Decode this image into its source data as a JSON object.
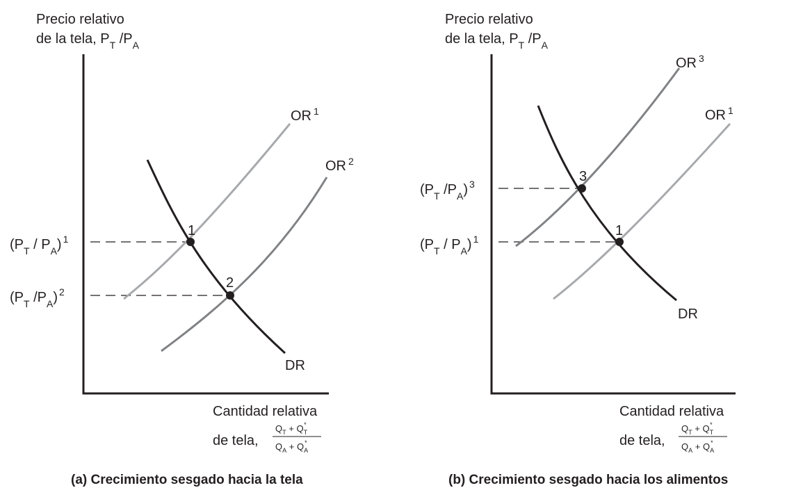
{
  "panel_a": {
    "y_axis_line1": "Precio relativo",
    "y_axis_line2": "de la tela, P",
    "y_axis_sub1": "T",
    "y_axis_mid": " /P",
    "y_axis_sub2": "A",
    "x_axis_line1": "Cantidad relativa",
    "x_axis_line2": "de tela,",
    "frac_num_q": "Q",
    "frac_num_s1": "T",
    "frac_num_plus": " + Q",
    "frac_num_s2": "T",
    "frac_num_star": "*",
    "frac_den_q": "Q",
    "frac_den_s1": "A",
    "frac_den_plus": " + Q",
    "frac_den_s2": "A",
    "frac_den_star": "*",
    "curve_or1": "OR",
    "curve_or1_sup": "1",
    "curve_or2": "OR",
    "curve_or2_sup": "2",
    "curve_dr": "DR",
    "point1": "1",
    "point2": "2",
    "price1_open": "(P",
    "price1_s1": "T",
    "price1_mid": " / P",
    "price1_s2": "A",
    "price1_close": ")",
    "price1_sup": "1",
    "price2_open": "(P",
    "price2_s1": "T",
    "price2_mid": " /P",
    "price2_s2": "A",
    "price2_close": ")",
    "price2_sup": "2",
    "caption": "(a) Crecimiento sesgado hacia la tela"
  },
  "panel_b": {
    "y_axis_line1": "Precio relativo",
    "y_axis_line2": "de la tela, P",
    "y_axis_sub1": "T",
    "y_axis_mid": " /P",
    "y_axis_sub2": "A",
    "x_axis_line1": "Cantidad relativa",
    "x_axis_line2": "de tela,",
    "frac_num_q": "Q",
    "frac_num_s1": "T",
    "frac_num_plus": " + Q",
    "frac_num_s2": "T",
    "frac_num_star": "*",
    "frac_den_q": "Q",
    "frac_den_s1": "A",
    "frac_den_plus": " + Q",
    "frac_den_s2": "A",
    "frac_den_star": "*",
    "curve_or3": "OR",
    "curve_or3_sup": "3",
    "curve_or1": "OR",
    "curve_or1_sup": "1",
    "curve_dr": "DR",
    "point3": "3",
    "point1": "1",
    "price3_open": "(P",
    "price3_s1": "T",
    "price3_mid": " /P",
    "price3_s2": "A",
    "price3_close": ")",
    "price3_sup": "3",
    "price1_open": "(P",
    "price1_s1": "T",
    "price1_mid": " / P",
    "price1_s2": "A",
    "price1_close": ")",
    "price1_sup": "1",
    "caption": "(b) Crecimiento sesgado hacia los alimentos"
  },
  "colors": {
    "ink": "#231f20",
    "or_light": "#a7a9ac",
    "or_mid": "#808285"
  }
}
